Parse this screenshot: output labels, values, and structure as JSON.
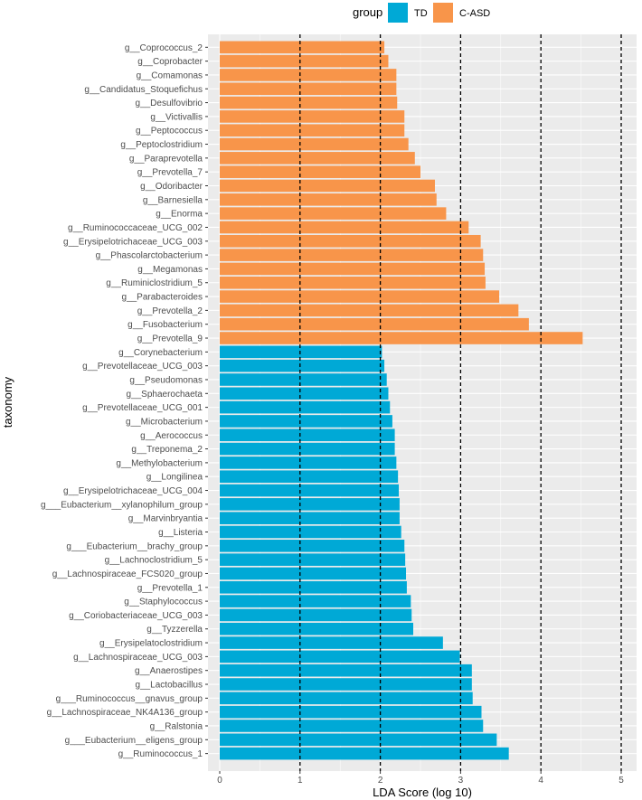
{
  "chart_data": {
    "type": "bar",
    "orientation": "horizontal",
    "title": "",
    "xlabel": "LDA Score (log 10)",
    "ylabel": "taxonomy",
    "xlim": [
      0,
      5.25
    ],
    "xticks": [
      0,
      1,
      2,
      3,
      4,
      5
    ],
    "reference_lines": [
      1,
      2,
      3,
      4,
      5
    ],
    "grid": true,
    "legend": {
      "title": "group",
      "position": "top",
      "entries": [
        {
          "name": "TD",
          "color": "#00A9D6"
        },
        {
          "name": "C-ASD",
          "color": "#F8954A"
        }
      ]
    },
    "bars": [
      {
        "category": "g__Coprococcus_2",
        "value": 2.05,
        "group": "C-ASD"
      },
      {
        "category": "g__Coprobacter",
        "value": 2.1,
        "group": "C-ASD"
      },
      {
        "category": "g__Comamonas",
        "value": 2.2,
        "group": "C-ASD"
      },
      {
        "category": "g__Candidatus_Stoquefichus",
        "value": 2.2,
        "group": "C-ASD"
      },
      {
        "category": "g__Desulfovibrio",
        "value": 2.21,
        "group": "C-ASD"
      },
      {
        "category": "g__Victivallis",
        "value": 2.3,
        "group": "C-ASD"
      },
      {
        "category": "g__Peptococcus",
        "value": 2.3,
        "group": "C-ASD"
      },
      {
        "category": "g__Peptoclostridium",
        "value": 2.35,
        "group": "C-ASD"
      },
      {
        "category": "g__Paraprevotella",
        "value": 2.43,
        "group": "C-ASD"
      },
      {
        "category": "g__Prevotella_7",
        "value": 2.5,
        "group": "C-ASD"
      },
      {
        "category": "g__Odoribacter",
        "value": 2.68,
        "group": "C-ASD"
      },
      {
        "category": "g__Barnesiella",
        "value": 2.7,
        "group": "C-ASD"
      },
      {
        "category": "g__Enorma",
        "value": 2.82,
        "group": "C-ASD"
      },
      {
        "category": "g__Ruminococcaceae_UCG_002",
        "value": 3.1,
        "group": "C-ASD"
      },
      {
        "category": "g__Erysipelotrichaceae_UCG_003",
        "value": 3.25,
        "group": "C-ASD"
      },
      {
        "category": "g__Phascolarctobacterium",
        "value": 3.28,
        "group": "C-ASD"
      },
      {
        "category": "g__Megamonas",
        "value": 3.3,
        "group": "C-ASD"
      },
      {
        "category": "g__Ruminiclostridium_5",
        "value": 3.31,
        "group": "C-ASD"
      },
      {
        "category": "g__Parabacteroides",
        "value": 3.48,
        "group": "C-ASD"
      },
      {
        "category": "g__Prevotella_2",
        "value": 3.72,
        "group": "C-ASD"
      },
      {
        "category": "g__Fusobacterium",
        "value": 3.85,
        "group": "C-ASD"
      },
      {
        "category": "g__Prevotella_9",
        "value": 4.52,
        "group": "C-ASD"
      },
      {
        "category": "g__Corynebacterium",
        "value": 2.02,
        "group": "TD"
      },
      {
        "category": "g__Prevotellaceae_UCG_003",
        "value": 2.05,
        "group": "TD"
      },
      {
        "category": "g__Pseudomonas",
        "value": 2.08,
        "group": "TD"
      },
      {
        "category": "g__Sphaerochaeta",
        "value": 2.1,
        "group": "TD"
      },
      {
        "category": "g__Prevotellaceae_UCG_001",
        "value": 2.12,
        "group": "TD"
      },
      {
        "category": "g__Microbacterium",
        "value": 2.15,
        "group": "TD"
      },
      {
        "category": "g__Aerococcus",
        "value": 2.18,
        "group": "TD"
      },
      {
        "category": "g__Treponema_2",
        "value": 2.18,
        "group": "TD"
      },
      {
        "category": "g__Methylobacterium",
        "value": 2.2,
        "group": "TD"
      },
      {
        "category": "g__Longilinea",
        "value": 2.22,
        "group": "TD"
      },
      {
        "category": "g__Erysipelotrichaceae_UCG_004",
        "value": 2.23,
        "group": "TD"
      },
      {
        "category": "g___Eubacterium__xylanophilum_group",
        "value": 2.24,
        "group": "TD"
      },
      {
        "category": "g__Marvinbryantia",
        "value": 2.24,
        "group": "TD"
      },
      {
        "category": "g__Listeria",
        "value": 2.26,
        "group": "TD"
      },
      {
        "category": "g___Eubacterium__brachy_group",
        "value": 2.3,
        "group": "TD"
      },
      {
        "category": "g__Lachnoclostridium_5",
        "value": 2.31,
        "group": "TD"
      },
      {
        "category": "g__Lachnospiraceae_FCS020_group",
        "value": 2.32,
        "group": "TD"
      },
      {
        "category": "g__Prevotella_1",
        "value": 2.33,
        "group": "TD"
      },
      {
        "category": "g__Staphylococcus",
        "value": 2.38,
        "group": "TD"
      },
      {
        "category": "g__Coriobacteriaceae_UCG_003",
        "value": 2.39,
        "group": "TD"
      },
      {
        "category": "g__Tyzzerella",
        "value": 2.41,
        "group": "TD"
      },
      {
        "category": "g__Erysipelatoclostridium",
        "value": 2.78,
        "group": "TD"
      },
      {
        "category": "g__Lachnospiraceae_UCG_003",
        "value": 2.99,
        "group": "TD"
      },
      {
        "category": "g__Anaerostipes",
        "value": 3.14,
        "group": "TD"
      },
      {
        "category": "g__Lactobacillus",
        "value": 3.14,
        "group": "TD"
      },
      {
        "category": "g___Ruminococcus__gnavus_group",
        "value": 3.15,
        "group": "TD"
      },
      {
        "category": "g__Lachnospiraceae_NK4A136_group",
        "value": 3.26,
        "group": "TD"
      },
      {
        "category": "g__Ralstonia",
        "value": 3.28,
        "group": "TD"
      },
      {
        "category": "g___Eubacterium__eligens_group",
        "value": 3.45,
        "group": "TD"
      },
      {
        "category": "g__Ruminococcus_1",
        "value": 3.6,
        "group": "TD"
      }
    ]
  }
}
